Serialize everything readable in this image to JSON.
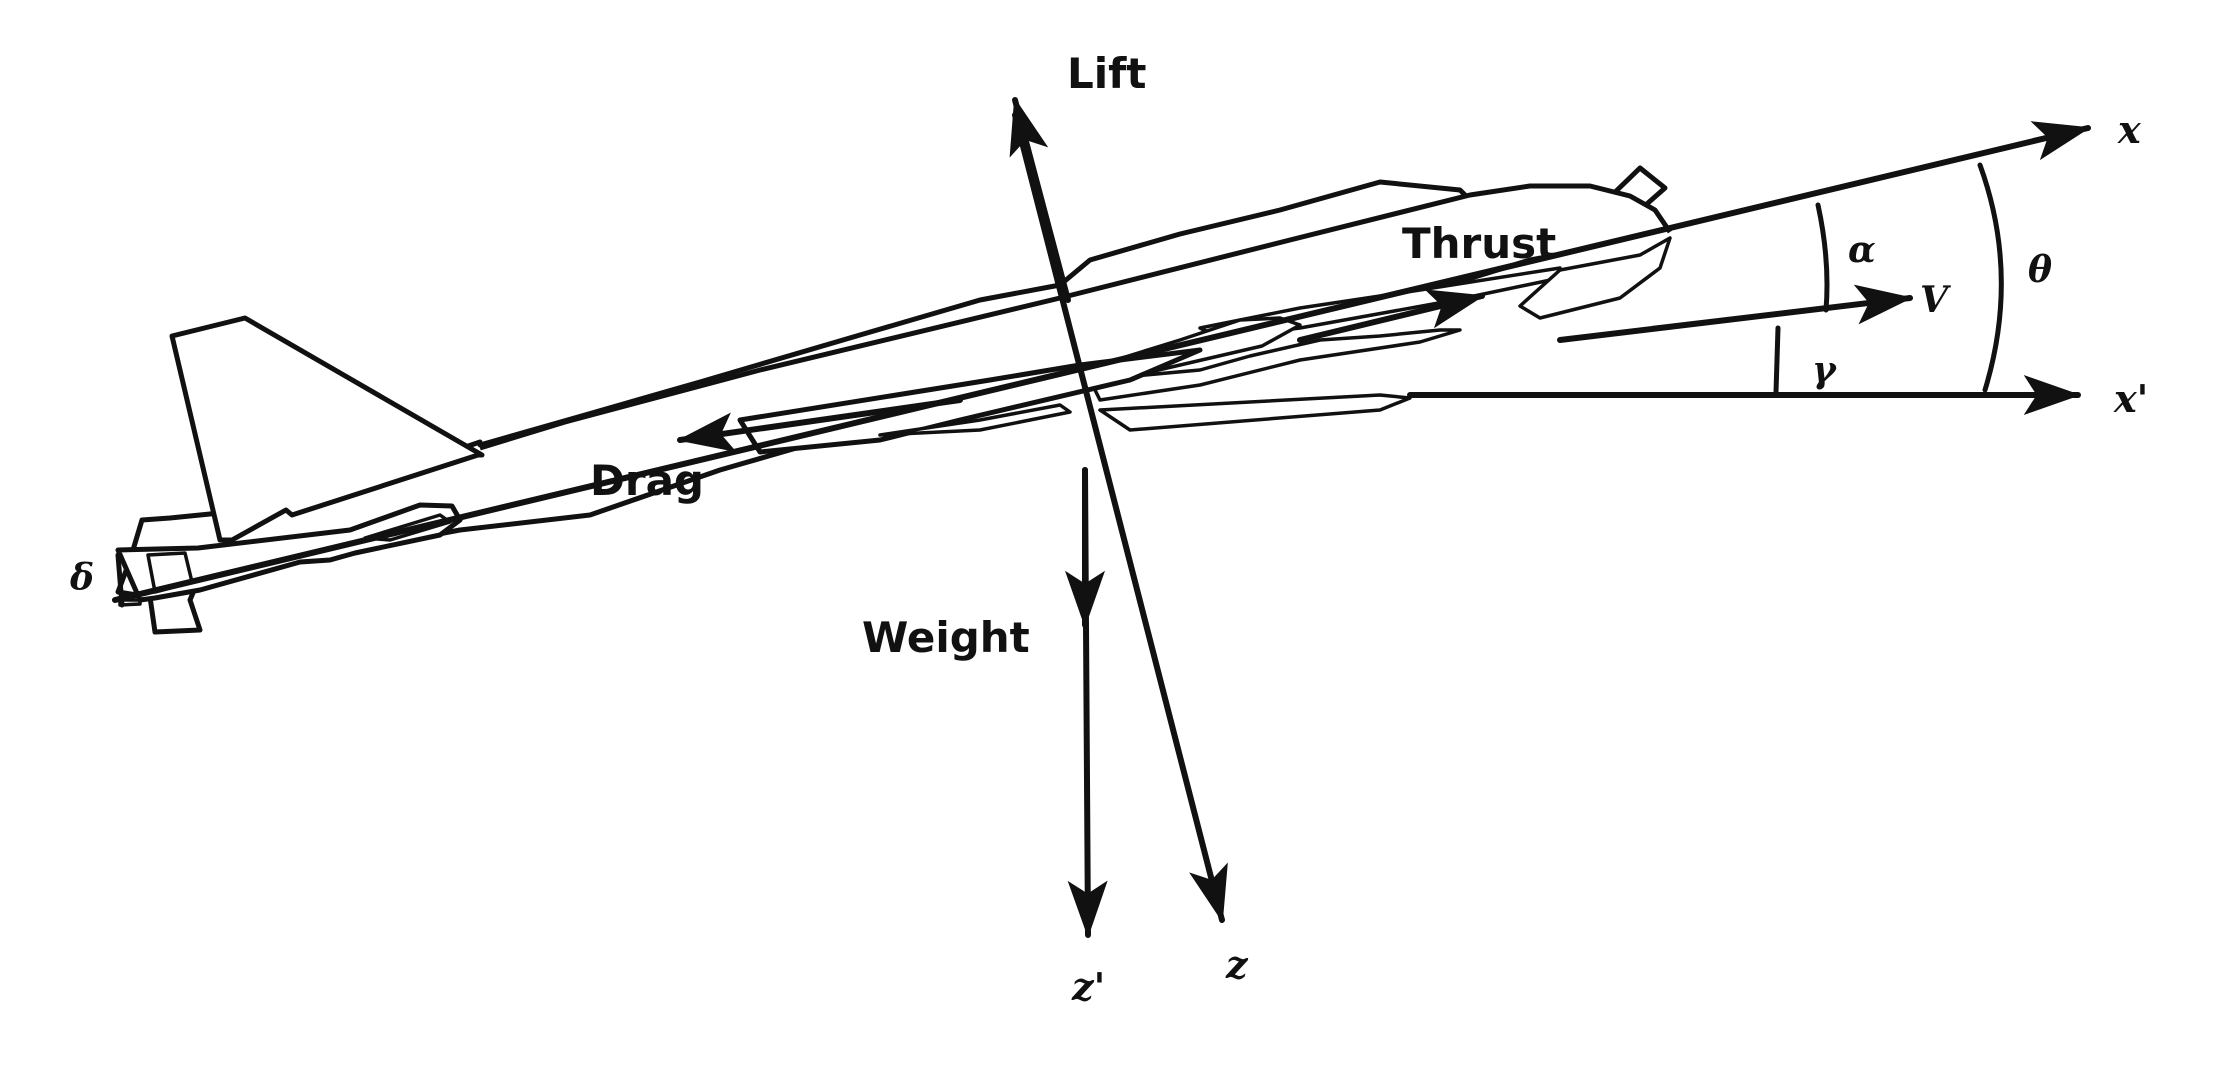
{
  "diagram": {
    "forces": {
      "lift": "Lift",
      "thrust": "Thrust",
      "drag": "Drag",
      "weight": "Weight"
    },
    "axes": {
      "x": "x",
      "x_prime": "x'",
      "z": "z",
      "z_prime": "z'"
    },
    "angles": {
      "alpha": "α",
      "theta": "θ",
      "gamma": "γ",
      "delta": "δ"
    },
    "velocity": "V"
  }
}
